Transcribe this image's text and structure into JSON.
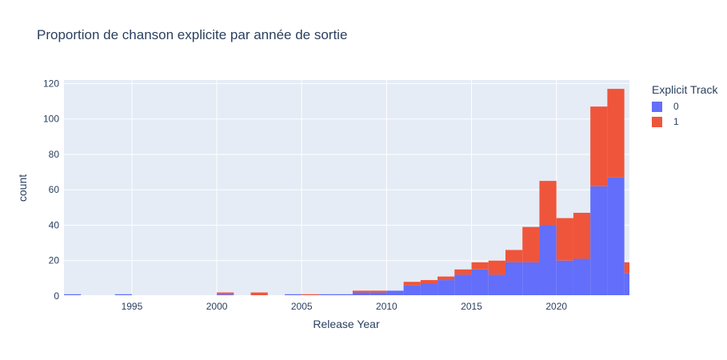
{
  "chart_data": {
    "type": "bar",
    "mode": "stacked",
    "title": "Proportion de chanson explicite par année de sortie",
    "xlabel": "Release Year",
    "ylabel": "count",
    "xlim": [
      1991,
      2024.3
    ],
    "ylim": [
      0,
      122
    ],
    "x_ticks": [
      1995,
      2000,
      2005,
      2010,
      2015,
      2020
    ],
    "y_ticks": [
      0,
      20,
      40,
      60,
      80,
      100,
      120
    ],
    "bin_width": 1,
    "grid": true,
    "legend_title": "Explicit Track",
    "legend_position": "top-right",
    "x": [
      1991,
      1994,
      2000,
      2002,
      2004,
      2005,
      2006,
      2007,
      2008,
      2009,
      2010,
      2011,
      2012,
      2013,
      2014,
      2015,
      2016,
      2017,
      2018,
      2019,
      2020,
      2021,
      2022,
      2023,
      2024
    ],
    "series": [
      {
        "name": "0",
        "color": "#636efa",
        "values": [
          1,
          1,
          1,
          0,
          1,
          0,
          1,
          1,
          2,
          2,
          3,
          6,
          7,
          9,
          12,
          15,
          12,
          19,
          19,
          40,
          20,
          21,
          62,
          67,
          13
        ]
      },
      {
        "name": "1",
        "color": "#ef553b",
        "values": [
          0,
          0,
          1,
          2,
          0,
          1,
          0,
          0,
          1,
          1,
          0,
          2,
          2,
          2,
          3,
          4,
          8,
          7,
          20,
          25,
          24,
          26,
          45,
          50,
          6
        ]
      }
    ]
  }
}
